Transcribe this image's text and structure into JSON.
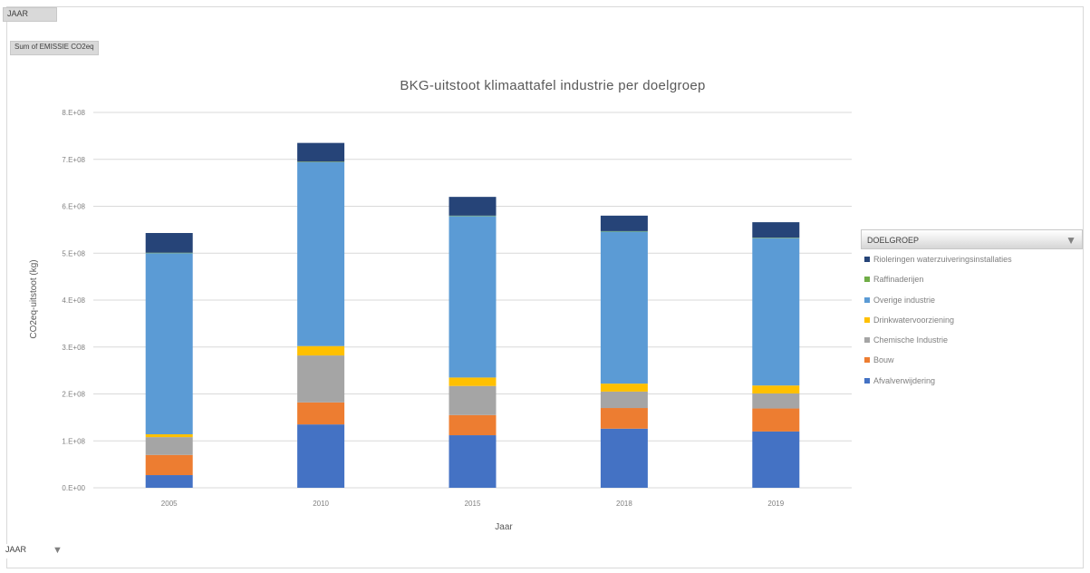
{
  "pivot": {
    "filter_field": "JAAR",
    "values_field": "Sum of EMISSIE CO2eq",
    "axis_field": "JAAR"
  },
  "chart_data": {
    "type": "bar",
    "stacked": true,
    "title": "BKG-uitstoot klimaattafel industrie per doelgroep",
    "xlabel": "Jaar",
    "ylabel": "CO2eq-uitstoot (kg)",
    "categories": [
      "2005",
      "2010",
      "2015",
      "2018",
      "2019"
    ],
    "ylim": [
      0,
      800000000
    ],
    "yticks": [
      "0.E+00",
      "1.E+08",
      "2.E+08",
      "3.E+08",
      "4.E+08",
      "5.E+08",
      "6.E+08",
      "7.E+08",
      "8.E+08"
    ],
    "grid": true,
    "legend_title": "DOELGROEP",
    "legend_position": "right",
    "series": [
      {
        "name": "Afvalverwijdering",
        "color": "#4472c4",
        "values": [
          27000000,
          135000000,
          112000000,
          126000000,
          120000000
        ]
      },
      {
        "name": "Bouw",
        "color": "#ed7d31",
        "values": [
          43000000,
          47000000,
          43000000,
          44000000,
          49000000
        ]
      },
      {
        "name": "Chemische Industrie",
        "color": "#a5a5a5",
        "values": [
          38000000,
          100000000,
          62000000,
          35000000,
          32000000
        ]
      },
      {
        "name": "Drinkwatervoorziening",
        "color": "#ffc000",
        "values": [
          6000000,
          20000000,
          18000000,
          17000000,
          17000000
        ]
      },
      {
        "name": "Overige industrie",
        "color": "#5b9bd5",
        "values": [
          386000000,
          392000000,
          344000000,
          324000000,
          314000000
        ]
      },
      {
        "name": "Raffinaderijen",
        "color": "#70ad47",
        "values": [
          1000000,
          1000000,
          1000000,
          1000000,
          1000000
        ]
      },
      {
        "name": "Rioleringen waterzuiveringsinstallaties",
        "color": "#264478",
        "values": [
          42000000,
          40000000,
          40000000,
          33000000,
          33000000
        ]
      }
    ]
  }
}
